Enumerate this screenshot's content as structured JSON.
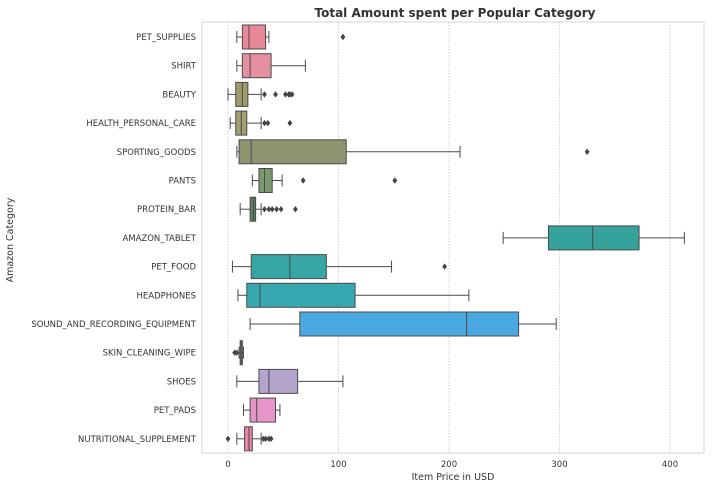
{
  "chart_data": {
    "type": "box",
    "orientation": "horizontal",
    "title": "Total Amount spent per Popular Category",
    "xlabel": "Item Price in USD",
    "ylabel": "Amazon Category",
    "xlim": [
      -20,
      435
    ],
    "xticks": [
      0,
      100,
      200,
      300,
      400
    ],
    "grid": "vertical-dotted",
    "categories": [
      {
        "name": "PET_SUPPLIES",
        "whislo": 8,
        "q1": 13,
        "med": 19,
        "q3": 34,
        "whishi": 37,
        "fliers": [
          104
        ],
        "color": "#e8869a"
      },
      {
        "name": "SHIRT",
        "whislo": 8,
        "q1": 13,
        "med": 20,
        "q3": 39,
        "whishi": 70,
        "fliers": [],
        "color": "#e490a0"
      },
      {
        "name": "BEAUTY",
        "whislo": 0,
        "q1": 7,
        "med": 13,
        "q3": 18,
        "whishi": 30,
        "fliers": [
          33,
          43,
          52,
          55,
          56,
          58
        ],
        "color": "#9e9a6a"
      },
      {
        "name": "HEALTH_PERSONAL_CARE",
        "whislo": 2,
        "q1": 7,
        "med": 12,
        "q3": 17,
        "whishi": 30,
        "fliers": [
          33,
          36,
          56
        ],
        "color": "#a0a070"
      },
      {
        "name": "SPORTING_GOODS",
        "whislo": 8,
        "q1": 10,
        "med": 21,
        "q3": 107,
        "whishi": 210,
        "fliers": [
          325
        ],
        "color": "#8e9470"
      },
      {
        "name": "PANTS",
        "whislo": 22,
        "q1": 28,
        "med": 33,
        "q3": 40,
        "whishi": 49,
        "fliers": [
          68,
          151
        ],
        "color": "#7a9a6c"
      },
      {
        "name": "PROTEIN_BAR",
        "whislo": 11,
        "q1": 20,
        "med": 23,
        "q3": 25,
        "whishi": 30,
        "fliers": [
          33,
          37,
          40,
          44,
          48,
          61
        ],
        "color": "#58826a"
      },
      {
        "name": "AMAZON_TABLET",
        "whislo": 249,
        "q1": 290,
        "med": 330,
        "q3": 372,
        "whishi": 413,
        "fliers": [],
        "color": "#35a29b"
      },
      {
        "name": "PET_FOOD",
        "whislo": 4,
        "q1": 21,
        "med": 56,
        "q3": 89,
        "whishi": 148,
        "fliers": [
          196
        ],
        "color": "#38a5a5"
      },
      {
        "name": "HEADPHONES",
        "whislo": 9,
        "q1": 17,
        "med": 29,
        "q3": 115,
        "whishi": 218,
        "fliers": [],
        "color": "#38a8b0"
      },
      {
        "name": "SOUND_AND_RECORDING_EQUIPMENT",
        "whislo": 20,
        "q1": 65,
        "med": 216,
        "q3": 263,
        "whishi": 297,
        "fliers": [],
        "color": "#4aa8e0"
      },
      {
        "name": "SKIN_CLEANING_WIPE",
        "whislo": 10,
        "q1": 11,
        "med": 12,
        "q3": 13,
        "whishi": 14,
        "fliers": [
          6,
          8
        ],
        "color": "#7a90b8"
      },
      {
        "name": "SHOES",
        "whislo": 8,
        "q1": 28,
        "med": 37,
        "q3": 63,
        "whishi": 104,
        "fliers": [],
        "color": "#b5a4cc"
      },
      {
        "name": "PET_PADS",
        "whislo": 14,
        "q1": 20,
        "med": 26,
        "q3": 43,
        "whishi": 47,
        "fliers": [],
        "color": "#e595c8"
      },
      {
        "name": "NUTRITIONAL_SUPPLEMENT",
        "whislo": 8,
        "q1": 15,
        "med": 19,
        "q3": 22,
        "whishi": 30,
        "fliers": [
          0,
          32,
          34,
          37,
          39
        ],
        "color": "#ea84a4"
      }
    ]
  }
}
